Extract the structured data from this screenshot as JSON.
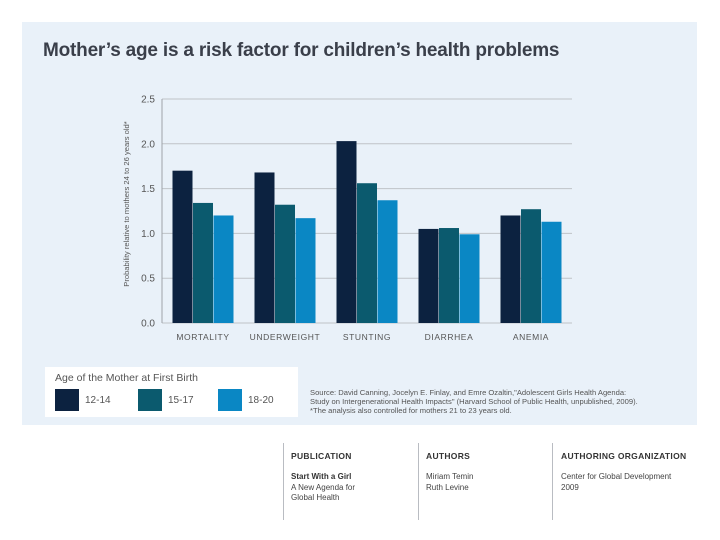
{
  "chart_data": {
    "type": "bar",
    "title": "Mother’s age is a risk factor for children’s health problems",
    "ylabel": "Probability relative to mothers 24 to 26 years old*",
    "xlabel": "",
    "ylim": [
      0,
      2.5
    ],
    "yticks": [
      {
        "value": 0.0,
        "label": "0.0"
      },
      {
        "value": 0.5,
        "label": "0.5"
      },
      {
        "value": 1.0,
        "label": "1.0"
      },
      {
        "value": 1.5,
        "label": "1.5"
      },
      {
        "value": 2.0,
        "label": "2.0"
      },
      {
        "value": 2.5,
        "label": "2.5"
      }
    ],
    "grid": true,
    "categories": [
      "MORTALITY",
      "UNDERWEIGHT",
      "STUNTING",
      "DIARRHEA",
      "ANEMIA"
    ],
    "series": [
      {
        "name": "12-14",
        "color": "#0c2240",
        "values": [
          1.7,
          1.68,
          2.03,
          1.05,
          1.2
        ]
      },
      {
        "name": "15-17",
        "color": "#0b5a6e",
        "values": [
          1.34,
          1.32,
          1.56,
          1.06,
          1.27
        ]
      },
      {
        "name": "18-20",
        "color": "#0a87c4",
        "values": [
          1.2,
          1.17,
          1.37,
          0.99,
          1.13
        ]
      }
    ],
    "legend": {
      "title": "Age of the Mother at First Birth",
      "position": "bottom-left"
    }
  },
  "source_lines": [
    "Source: David Canning, Jocelyn E. Finlay, and Emre Ozaltin,\"Adolescent Girls Health Agenda:",
    "Study on Intergenerational Health Impacts\" (Harvard School of Public Health, unpublished, 2009).",
    "*The analysis also controlled for mothers 21 to 23 years old."
  ],
  "footer": {
    "publication": {
      "heading": "PUBLICATION",
      "title": "Start With a Girl",
      "subtitle_lines": [
        "A New Agenda for",
        "Global Health"
      ]
    },
    "authors": {
      "heading": "AUTHORS",
      "names": [
        "Miriam Temin",
        "Ruth Levine"
      ]
    },
    "organization": {
      "heading": "AUTHORING ORGANIZATION",
      "lines": [
        "Center for Global Development",
        "2009"
      ]
    }
  }
}
